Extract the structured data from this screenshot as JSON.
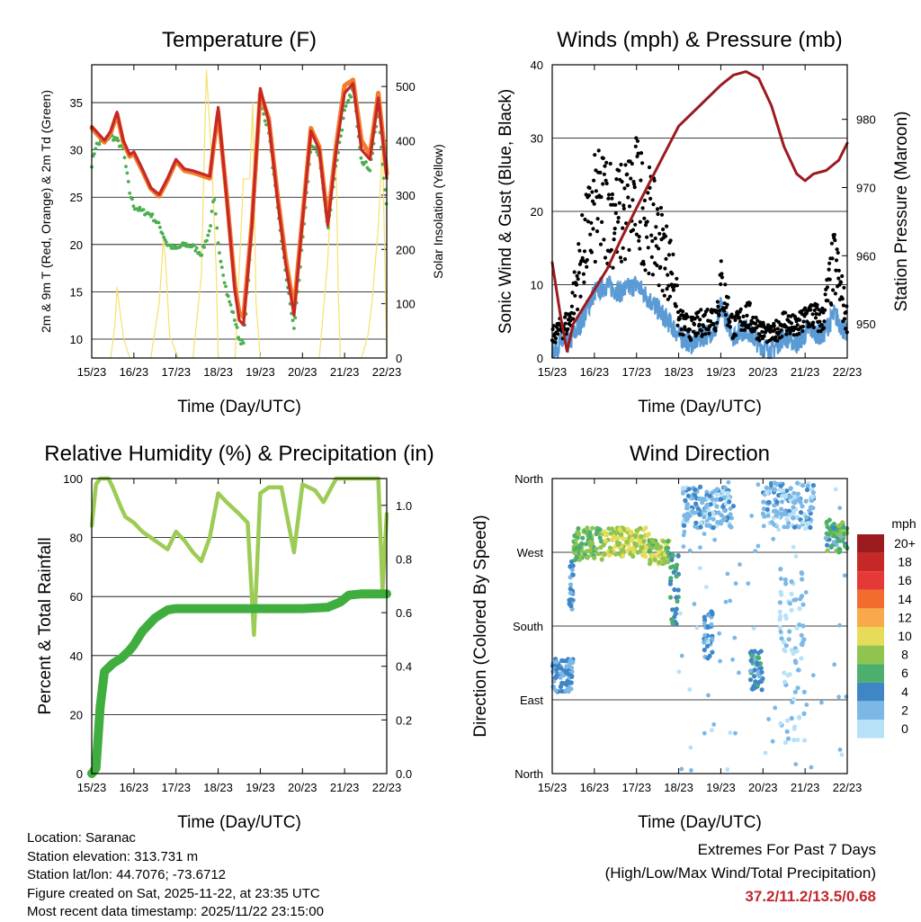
{
  "colors": {
    "temp_2m": "#c62828",
    "temp_9m": "#f57c28",
    "dewpoint": "#4caf50",
    "solar": "#f5e06b",
    "wind": "#5b9bd5",
    "gust": "#000000",
    "pressure": "#9b1b1f",
    "rh": "#9ccc55",
    "precip": "#3fae3f",
    "extremes": "#c0282d"
  },
  "xaxis": {
    "label": "Time (Day/UTC)",
    "ticks": [
      "15/23",
      "16/23",
      "17/23",
      "18/23",
      "19/23",
      "20/23",
      "21/23",
      "22/23"
    ]
  },
  "chart_data": [
    {
      "id": "temperature",
      "type": "line",
      "title": "Temperature (F)",
      "ylabel": "2m & 9m T (Red, Orange) & 2m Td (Green)",
      "y2label": "Solar Insolation (Yellow)",
      "ylim": [
        8,
        39
      ],
      "yticks": [
        10,
        15,
        20,
        25,
        30,
        35
      ],
      "y2lim": [
        0,
        540
      ],
      "y2ticks": [
        0,
        100,
        200,
        300,
        400,
        500
      ],
      "x": [
        0,
        0.1,
        0.3,
        0.45,
        0.6,
        0.75,
        0.9,
        1.0,
        1.2,
        1.4,
        1.6,
        1.8,
        2.0,
        2.2,
        2.4,
        2.6,
        2.8,
        2.9,
        3.0,
        3.2,
        3.4,
        3.5,
        3.6,
        3.8,
        4.0,
        4.2,
        4.4,
        4.6,
        4.8,
        5.0,
        5.2,
        5.4,
        5.6,
        5.8,
        6.0,
        6.2,
        6.4,
        6.6,
        6.8,
        7.0
      ],
      "series": [
        {
          "name": "2m T",
          "values": [
            32.5,
            32.0,
            31.0,
            32.0,
            34.0,
            31.0,
            29.5,
            29.8,
            28.0,
            26.0,
            25.3,
            27.0,
            29.0,
            28.0,
            27.8,
            27.5,
            27.2,
            31.0,
            34.5,
            25.0,
            15.0,
            12.0,
            11.5,
            22.0,
            36.5,
            33.0,
            25.0,
            18.0,
            12.5,
            22.5,
            32.0,
            30.0,
            22.0,
            30.0,
            36.0,
            37.0,
            30.0,
            29.0,
            35.5,
            27.0
          ]
        },
        {
          "name": "9m T",
          "values": [
            32.3,
            31.8,
            30.8,
            31.8,
            33.8,
            30.8,
            29.3,
            29.6,
            27.8,
            25.9,
            25.1,
            26.8,
            28.8,
            27.8,
            27.6,
            27.3,
            27.0,
            30.6,
            34.0,
            25.3,
            15.5,
            12.8,
            12.3,
            22.3,
            36.0,
            33.3,
            25.5,
            18.6,
            13.2,
            22.8,
            32.3,
            30.3,
            22.5,
            30.5,
            36.8,
            37.4,
            31.0,
            29.5,
            36.0,
            27.5
          ]
        },
        {
          "name": "2m Td",
          "values": [
            28.5,
            30.5,
            31.0,
            31.5,
            31.0,
            30.0,
            25.5,
            24.0,
            23.5,
            23.2,
            22.0,
            20.0,
            19.5,
            20.0,
            19.8,
            19.0,
            21.5,
            25.0,
            20.0,
            15.0,
            12.0,
            10.0,
            9.5,
            21.0,
            35.0,
            32.0,
            24.0,
            17.0,
            11.0,
            20.0,
            30.5,
            29.5,
            21.5,
            28.5,
            34.0,
            36.5,
            29.0,
            28.0,
            34.0,
            23.5
          ]
        },
        {
          "name": "Solar Insolation",
          "axis": "y2",
          "x": [
            0,
            0.45,
            0.55,
            0.6,
            0.68,
            0.75,
            0.82,
            0.9,
            1.4,
            1.6,
            1.7,
            1.75,
            1.85,
            1.95,
            2.05,
            2.4,
            2.6,
            2.72,
            2.85,
            2.95,
            3.0,
            3.4,
            3.6,
            3.75,
            3.82,
            3.9,
            4.0,
            5.4,
            5.6,
            5.7,
            5.8,
            5.85,
            5.9,
            6.4,
            6.55,
            6.65,
            6.72,
            6.8,
            6.9,
            7.0
          ],
          "values": [
            0,
            0,
            60,
            130,
            80,
            40,
            20,
            0,
            0,
            100,
            220,
            180,
            40,
            20,
            0,
            0,
            150,
            530,
            360,
            170,
            0,
            0,
            330,
            330,
            470,
            100,
            0,
            0,
            180,
            340,
            350,
            120,
            0,
            0,
            40,
            100,
            170,
            240,
            400,
            0
          ]
        }
      ]
    },
    {
      "id": "winds",
      "type": "scatter",
      "title": "Winds (mph) & Pressure (mb)",
      "ylabel": "Sonic Wind & Gust (Blue, Black)",
      "y2label": "Station Pressure (Maroon)",
      "ylim": [
        0,
        40
      ],
      "yticks": [
        0,
        10,
        20,
        30,
        40
      ],
      "y2lim": [
        945,
        988
      ],
      "y2ticks": [
        950,
        960,
        970,
        980
      ],
      "series": [
        {
          "name": "Wind",
          "x": [
            0,
            0.2,
            0.4,
            0.7,
            1.0,
            1.3,
            1.6,
            2.0,
            2.3,
            2.6,
            2.9,
            3.0,
            3.3,
            3.6,
            3.9,
            4.0,
            4.3,
            4.6,
            4.9,
            5.2,
            5.5,
            5.8,
            6.1,
            6.4,
            6.7,
            7.0
          ],
          "values": [
            1,
            2,
            2,
            5,
            9,
            10,
            9,
            10,
            8,
            6,
            4,
            3,
            2,
            3,
            4,
            7,
            3,
            4,
            2,
            1,
            3,
            2,
            4,
            3,
            6,
            3
          ]
        },
        {
          "name": "Gust",
          "x": [
            0,
            0.2,
            0.4,
            0.7,
            1.0,
            1.3,
            1.6,
            2.0,
            2.3,
            2.6,
            2.9,
            3.0,
            3.3,
            3.6,
            3.9,
            4.0,
            4.3,
            4.6,
            4.9,
            5.2,
            5.5,
            5.8,
            6.1,
            6.4,
            6.7,
            7.0
          ],
          "values": [
            3,
            4,
            5,
            14,
            20,
            21,
            19,
            22,
            19,
            15,
            11,
            5,
            4,
            5,
            6,
            10,
            4,
            6,
            4,
            3,
            5,
            4,
            6,
            5,
            13,
            5
          ]
        },
        {
          "name": "Station Pressure",
          "axis": "y2",
          "x": [
            0,
            0.2,
            0.35,
            0.5,
            0.8,
            1.0,
            1.3,
            1.6,
            2.0,
            2.5,
            3.0,
            3.5,
            4.0,
            4.3,
            4.6,
            4.9,
            5.2,
            5.5,
            5.8,
            6.0,
            6.2,
            6.5,
            6.8,
            7.0
          ],
          "values": [
            959,
            951,
            946,
            950,
            953,
            955,
            958,
            962,
            967,
            973,
            979,
            982,
            985,
            986.5,
            987,
            986,
            982,
            976,
            972,
            971,
            972,
            972.5,
            974,
            976.5
          ]
        }
      ]
    },
    {
      "id": "humidity",
      "type": "line",
      "title": "Relative Humidity (%) & Precipitation (in)",
      "ylabel": "Percent & Total Rainfall",
      "ylim": [
        0,
        100
      ],
      "yticks": [
        0,
        20,
        40,
        60,
        80,
        100
      ],
      "y2lim": [
        0,
        1.1
      ],
      "y2ticks": [
        "0.0",
        "0.2",
        "0.4",
        "0.6",
        "0.8",
        "1.0"
      ],
      "series": [
        {
          "name": "Relative Humidity",
          "x": [
            0,
            0.1,
            0.2,
            0.4,
            0.5,
            0.7,
            0.8,
            1.0,
            1.2,
            1.4,
            1.6,
            1.8,
            2.0,
            2.2,
            2.4,
            2.6,
            2.8,
            3.0,
            3.2,
            3.5,
            3.7,
            3.85,
            4.0,
            4.2,
            4.5,
            4.8,
            5.0,
            5.3,
            5.5,
            5.8,
            6.0,
            6.3,
            6.6,
            6.8,
            6.9,
            7.0
          ],
          "values": [
            84,
            98,
            100,
            100,
            97,
            90,
            87,
            85,
            82,
            80,
            78,
            76,
            82,
            79,
            75,
            72,
            80,
            95,
            92,
            88,
            85,
            47,
            95,
            97,
            97,
            75,
            98,
            96,
            92,
            100,
            100,
            100,
            100,
            100,
            62,
            88
          ]
        },
        {
          "name": "Total Precipitation",
          "axis": "y2",
          "x": [
            0,
            0.1,
            0.2,
            0.3,
            0.5,
            0.7,
            0.9,
            1.0,
            1.2,
            1.5,
            1.8,
            2.0,
            2.5,
            3.0,
            4.0,
            5.0,
            5.6,
            5.9,
            6.1,
            6.4,
            6.7,
            7.0
          ],
          "values": [
            0,
            0.02,
            0.25,
            0.38,
            0.41,
            0.43,
            0.46,
            0.48,
            0.53,
            0.58,
            0.61,
            0.615,
            0.615,
            0.615,
            0.615,
            0.615,
            0.62,
            0.64,
            0.665,
            0.67,
            0.67,
            0.67
          ]
        }
      ]
    },
    {
      "id": "direction",
      "type": "scatter",
      "title": "Wind Direction",
      "ylabel": "Direction (Colored By Speed)",
      "yticks": [
        "North",
        "East",
        "South",
        "West",
        "North"
      ],
      "ylim": [
        0,
        360
      ],
      "clusters": [
        {
          "x": [
            0.0,
            0.5
          ],
          "dir": [
            100,
            140
          ],
          "speed": 3
        },
        {
          "x": [
            0.4,
            0.5
          ],
          "dir": [
            200,
            260
          ],
          "speed": 3
        },
        {
          "x": [
            0.5,
            1.2
          ],
          "dir": [
            260,
            300
          ],
          "speed": 7
        },
        {
          "x": [
            1.2,
            2.3
          ],
          "dir": [
            265,
            300
          ],
          "speed": 9
        },
        {
          "x": [
            2.3,
            2.8
          ],
          "dir": [
            255,
            285
          ],
          "speed": 8
        },
        {
          "x": [
            2.8,
            3.0
          ],
          "dir": [
            180,
            270
          ],
          "speed": 5
        },
        {
          "x": [
            3.1,
            4.3
          ],
          "dir": [
            300,
            350
          ],
          "speed": 2
        },
        {
          "x": [
            3.6,
            3.8
          ],
          "dir": [
            140,
            200
          ],
          "speed": 3
        },
        {
          "x": [
            4.7,
            5.0
          ],
          "dir": [
            100,
            150
          ],
          "speed": 4
        },
        {
          "x": [
            5.0,
            6.2
          ],
          "dir": [
            300,
            355
          ],
          "speed": 2
        },
        {
          "x": [
            5.4,
            6.0
          ],
          "dir": [
            30,
            250
          ],
          "speed": 1
        },
        {
          "x": [
            6.5,
            7.0
          ],
          "dir": [
            270,
            310
          ],
          "speed": 6
        }
      ],
      "legend": {
        "title": "mph",
        "labels": [
          "20+",
          "18",
          "16",
          "14",
          "12",
          "10",
          "8",
          "6",
          "4",
          "2",
          "0"
        ],
        "colors": [
          "#9b1b1f",
          "#c62828",
          "#e53935",
          "#f26b2f",
          "#f9a94a",
          "#e6dc5a",
          "#8fc54f",
          "#4caf6d",
          "#3f86c6",
          "#7cb8e6",
          "#b7e1f7"
        ]
      }
    }
  ],
  "info": {
    "location": "Location: Saranac",
    "elevation": "Station elevation: 313.731 m",
    "latlon": "Station lat/lon: 44.7076; -73.6712",
    "created": "Figure created on Sat, 2025-11-22, at 23:35 UTC",
    "recent": "Most recent data timestamp: 2025/11/22 23:15:00"
  },
  "extremes": {
    "title": "Extremes For Past 7 Days",
    "subtitle": "(High/Low/Max Wind/Total Precipitation)",
    "values": "37.2/11.2/13.5/0.68"
  }
}
